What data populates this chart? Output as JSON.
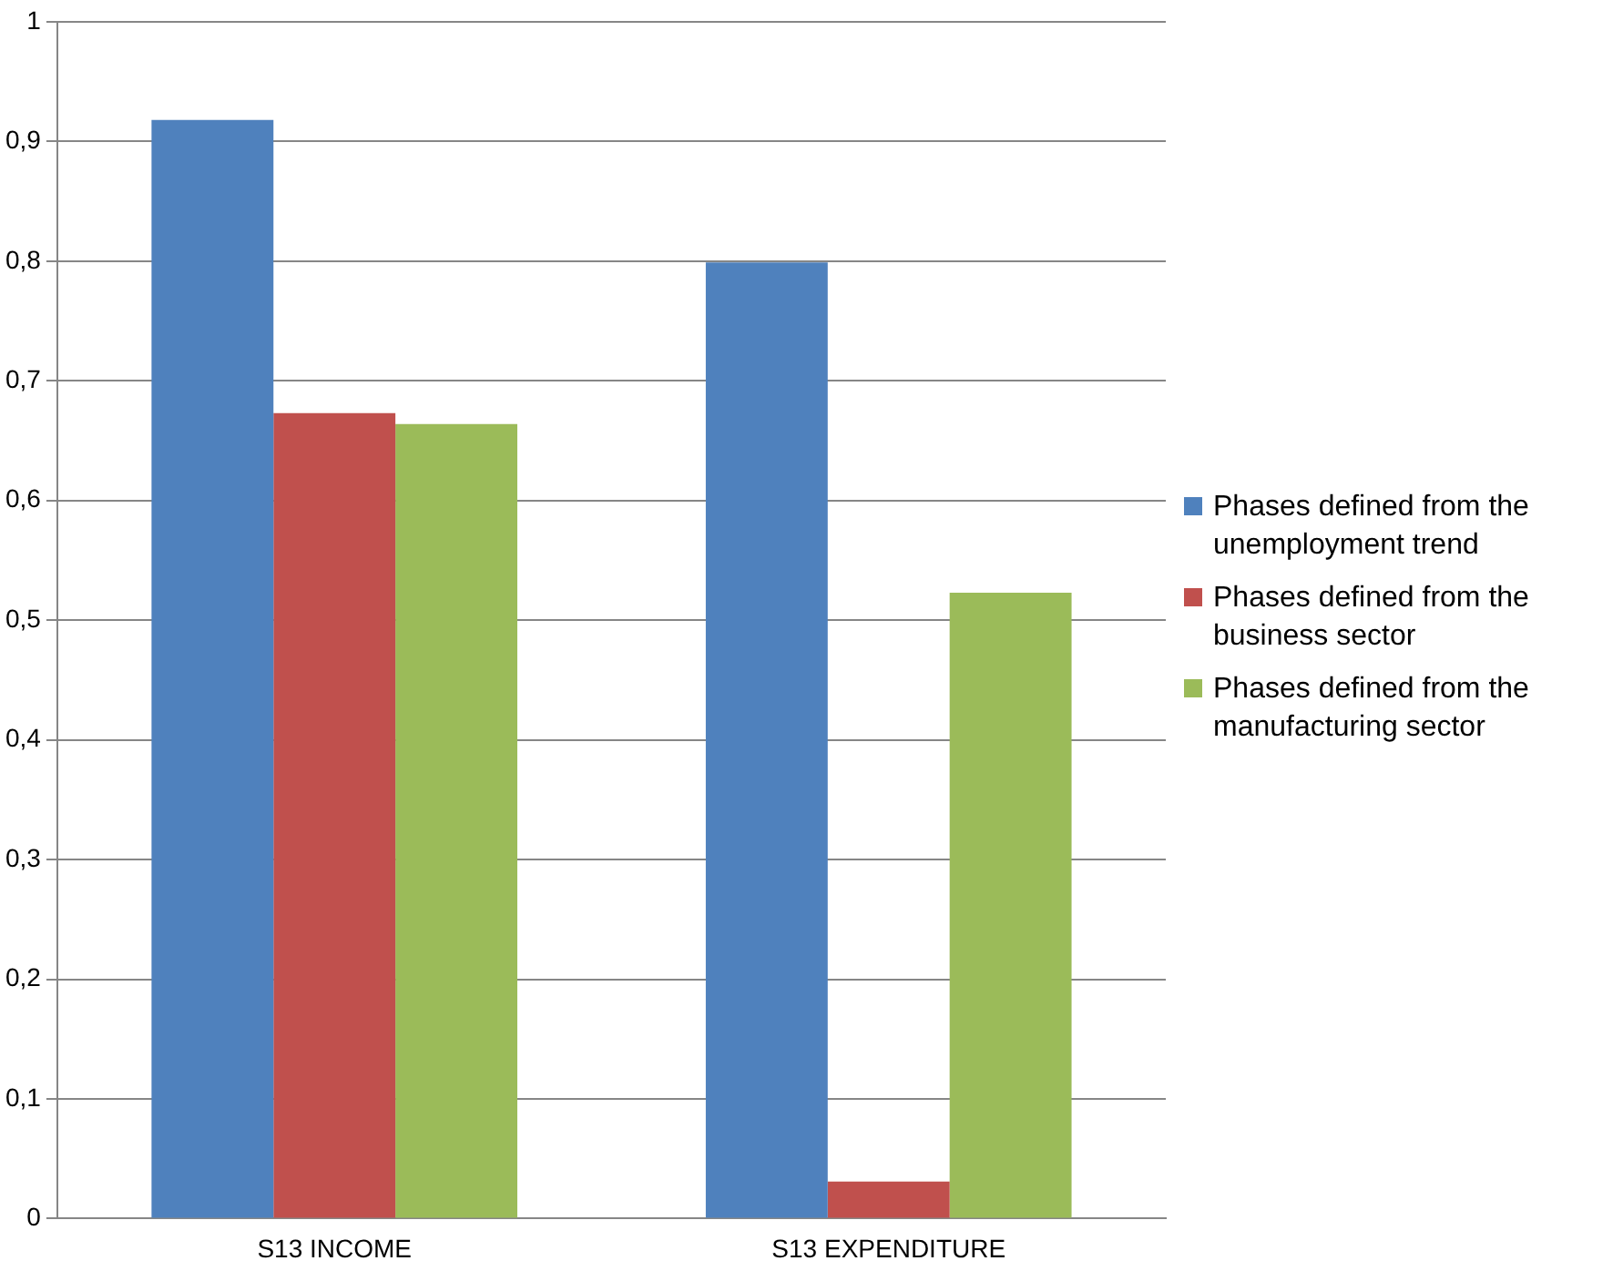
{
  "chart_data": {
    "type": "bar",
    "categories": [
      "S13 INCOME",
      "S13 EXPENDITURE"
    ],
    "series": [
      {
        "name": "Phases defined from the unemployment trend",
        "color": "#4f81bd",
        "values": [
          0.918,
          0.799
        ]
      },
      {
        "name": "Phases defined from the business sector",
        "color": "#c0504d",
        "values": [
          0.673,
          0.031
        ]
      },
      {
        "name": "Phases defined from the manufacturing sector",
        "color": "#9bbb59",
        "values": [
          0.664,
          0.523
        ]
      }
    ],
    "ylim": [
      0,
      1
    ],
    "yticks": [
      0,
      {
        "value": 0.1,
        "label": "0,1"
      },
      {
        "value": 0.2,
        "label": "0,2"
      },
      {
        "value": 0.3,
        "label": "0,3"
      },
      {
        "value": 0.4,
        "label": "0,4"
      },
      {
        "value": 0.5,
        "label": "0,5"
      },
      {
        "value": 0.6,
        "label": "0,6"
      },
      {
        "value": 0.7,
        "label": "0,7"
      },
      {
        "value": 0.8,
        "label": "0,8"
      },
      {
        "value": 0.9,
        "label": "0,9"
      },
      1
    ],
    "grid": "y",
    "legend": "right"
  }
}
